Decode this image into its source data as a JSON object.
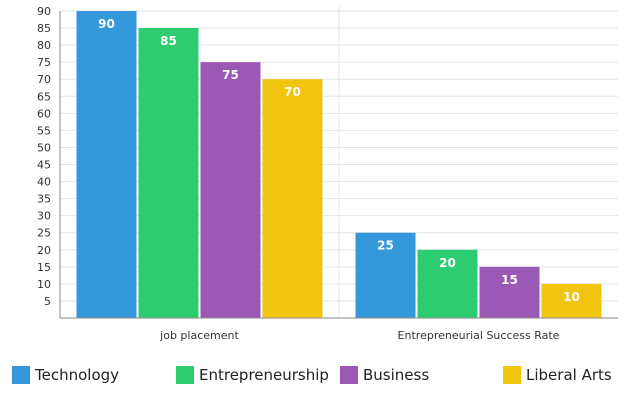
{
  "chart_data": {
    "type": "bar",
    "categories": [
      "job placement",
      "Entrepreneurial Success Rate"
    ],
    "series": [
      {
        "name": "Technology",
        "values": [
          90,
          25
        ],
        "color": "#3498db"
      },
      {
        "name": "Entrepreneurship",
        "values": [
          85,
          20
        ],
        "color": "#2ecc71"
      },
      {
        "name": "Business",
        "values": [
          75,
          15
        ],
        "color": "#9b59b6"
      },
      {
        "name": "Liberal Arts",
        "values": [
          70,
          10
        ],
        "color": "#f1c40f"
      }
    ],
    "ylim": [
      0,
      90
    ],
    "yticks": [
      5,
      10,
      15,
      20,
      25,
      30,
      35,
      40,
      45,
      50,
      55,
      60,
      65,
      70,
      75,
      80,
      85,
      90
    ],
    "grid": true,
    "legend": "bottom",
    "data_labels": true
  }
}
